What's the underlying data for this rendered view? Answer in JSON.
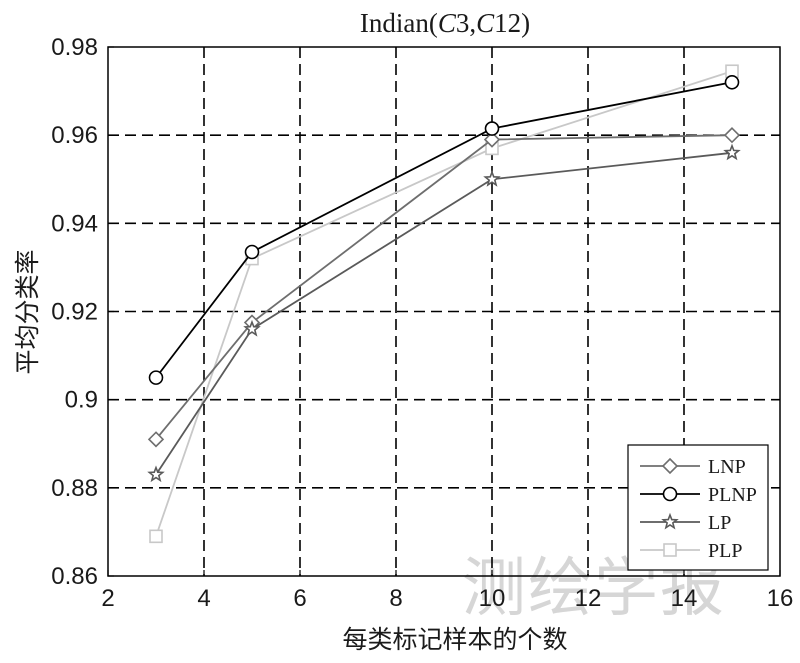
{
  "chart_data": {
    "type": "line",
    "title": "Indian(C3,C12)",
    "xlabel": "每类标记样本的个数",
    "ylabel": "平均分类率",
    "xlim": [
      2,
      16
    ],
    "ylim": [
      0.86,
      0.98
    ],
    "xticks": [
      2,
      4,
      6,
      8,
      10,
      12,
      14,
      16
    ],
    "xtick_labels": [
      "2",
      "4",
      "6",
      "8",
      "10",
      "12",
      "14",
      "16"
    ],
    "yticks": [
      0.86,
      0.88,
      0.9,
      0.92,
      0.94,
      0.96,
      0.98
    ],
    "ytick_labels": [
      "0.86",
      "0.88",
      "0.9",
      "0.92",
      "0.94",
      "0.96",
      "0.98"
    ],
    "grid": true,
    "legend_position": "bottom-right",
    "x": [
      3,
      5,
      10,
      15
    ],
    "series": [
      {
        "name": "LNP",
        "values": [
          0.891,
          0.9175,
          0.959,
          0.96
        ],
        "color": "#6e6e6e",
        "marker": "diamond"
      },
      {
        "name": "PLNP",
        "values": [
          0.905,
          0.9335,
          0.9615,
          0.972
        ],
        "color": "#000000",
        "marker": "circle"
      },
      {
        "name": "LP",
        "values": [
          0.883,
          0.916,
          0.95,
          0.956
        ],
        "color": "#5a5a5a",
        "marker": "star"
      },
      {
        "name": "PLP",
        "values": [
          0.869,
          0.932,
          0.957,
          0.9745
        ],
        "color": "#c8c8c8",
        "marker": "square"
      }
    ]
  },
  "watermark": "测绘学报"
}
